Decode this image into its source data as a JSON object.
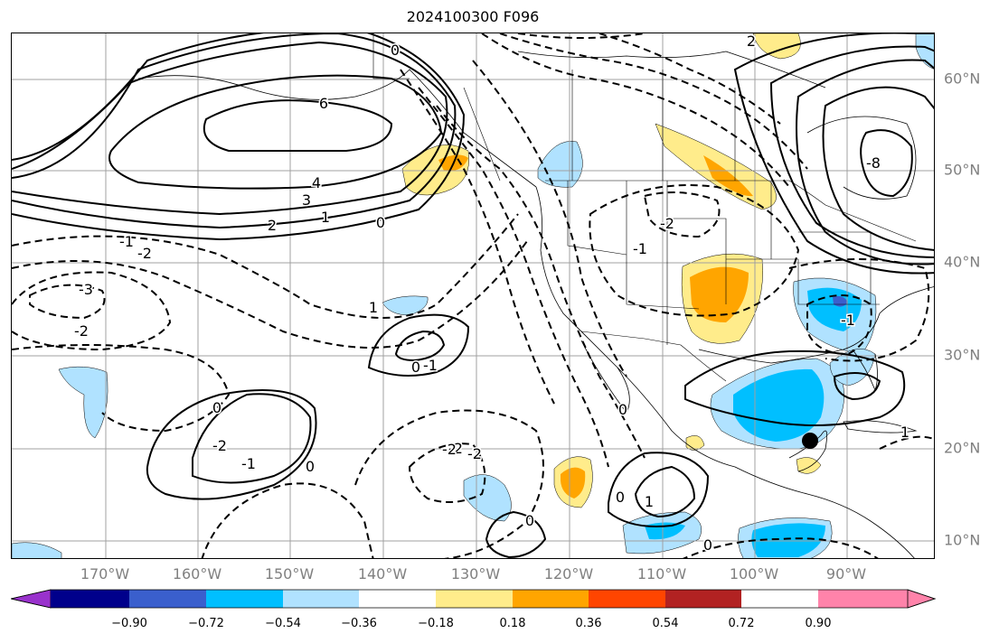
{
  "title": "2024100300 F096",
  "map": {
    "longitude_labels": [
      "170°W",
      "160°W",
      "150°W",
      "140°W",
      "130°W",
      "120°W",
      "110°W",
      "100°W",
      "90°W"
    ],
    "latitude_labels": [
      "60°N",
      "50°N",
      "40°N",
      "30°N",
      "20°N",
      "10°N"
    ],
    "contour_labels": [
      "6",
      "4",
      "3",
      "2",
      "1",
      "0",
      "-1",
      "-2",
      "-3",
      "2",
      "0",
      "-1",
      "-2",
      "-2",
      "-2",
      "1",
      "0",
      "-1",
      "-1",
      "0",
      "-2",
      "-2",
      "0",
      "0",
      "1",
      "-8",
      "0",
      "-1",
      "0",
      "0",
      "1",
      "-2"
    ],
    "marker": "storm-center-dot"
  },
  "colorbar": {
    "tick_labels": [
      "−0.90",
      "−0.72",
      "−0.54",
      "−0.36",
      "−0.18",
      "0.18",
      "0.36",
      "0.54",
      "0.72",
      "0.90"
    ],
    "colors": [
      "#9932cc",
      "#00008b",
      "#3a5fcd",
      "#00bfff",
      "#b0e2ff",
      "#ffffff",
      "#ffec8b",
      "#ffa500",
      "#ff4500",
      "#b22222",
      "#ff83aa"
    ]
  }
}
